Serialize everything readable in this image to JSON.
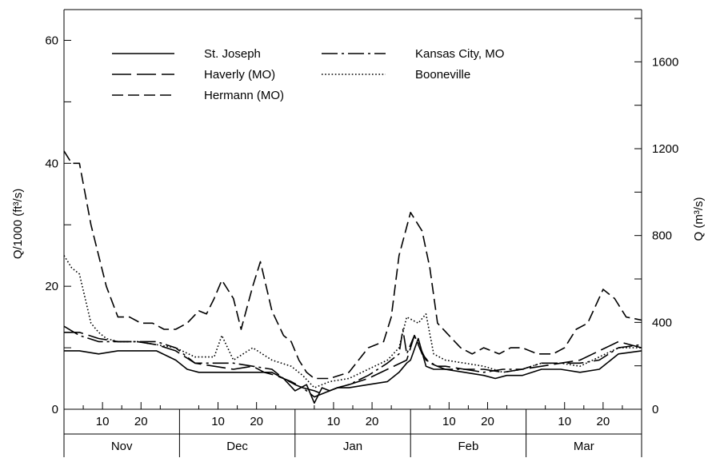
{
  "chart_data": {
    "type": "line",
    "title": "",
    "ylabel": "Q/1000 (ft³/s)",
    "ylabel_right": "Q (m³/s)",
    "ylim": [
      0,
      65
    ],
    "ylim_right_m3s": [
      0,
      1840
    ],
    "yticks_labeled": [
      0,
      20,
      40,
      60
    ],
    "yticks_right_labeled": [
      0,
      400,
      800,
      1200,
      1600
    ],
    "x_unit": "day index from Nov 1",
    "xlim": [
      1,
      151
    ],
    "grid": false,
    "legend_position": "top-left",
    "months": [
      {
        "label": "Nov",
        "start": 1,
        "end": 31
      },
      {
        "label": "Dec",
        "start": 31,
        "end": 61
      },
      {
        "label": "Jan",
        "start": 61,
        "end": 91
      },
      {
        "label": "Feb",
        "start": 91,
        "end": 121
      },
      {
        "label": "Mar",
        "start": 121,
        "end": 151
      }
    ],
    "day_tick_labels": [
      "10",
      "20"
    ],
    "series": [
      {
        "name": "St. Joseph",
        "dash": "solid",
        "x": [
          1,
          5,
          10,
          15,
          20,
          25,
          30,
          33,
          36,
          40,
          45,
          50,
          55,
          58,
          61,
          64,
          66,
          68,
          70,
          72,
          75,
          80,
          85,
          88,
          90,
          91,
          93,
          95,
          97,
          100,
          105,
          110,
          113,
          116,
          120,
          125,
          130,
          135,
          140,
          145,
          151
        ],
        "y": [
          9.5,
          9.5,
          9,
          9.5,
          9.5,
          9.5,
          8,
          6.5,
          6,
          6,
          6,
          6,
          6,
          5,
          3,
          4,
          1,
          3.5,
          3,
          3.5,
          3.5,
          4,
          4.5,
          6,
          7.5,
          8,
          11.5,
          7,
          6.5,
          6.5,
          6,
          5.5,
          5,
          5.5,
          5.5,
          6.5,
          6.5,
          6,
          6.5,
          9,
          9.5
        ]
      },
      {
        "name": "Haverly (MO)",
        "dash": "longdash",
        "x": [
          1,
          5,
          10,
          15,
          20,
          25,
          30,
          35,
          40,
          45,
          50,
          53,
          56,
          60,
          63,
          66,
          68,
          70,
          72,
          75,
          80,
          85,
          90,
          92,
          94,
          96,
          98,
          100,
          105,
          110,
          115,
          120,
          125,
          130,
          135,
          140,
          145,
          151
        ],
        "y": [
          12.5,
          12.5,
          11.5,
          11,
          11,
          10.5,
          9.5,
          7.5,
          7,
          6.5,
          7,
          6,
          5.5,
          4.5,
          3.5,
          3,
          2.5,
          3,
          3.5,
          4,
          5,
          6.5,
          8,
          12,
          9,
          7.5,
          7,
          7,
          6.5,
          6.5,
          6,
          6.5,
          7,
          7.5,
          8,
          9.5,
          11,
          10
        ]
      },
      {
        "name": "Hermann (MO)",
        "dash": "dashed",
        "x": [
          1,
          3,
          5,
          8,
          10,
          12,
          15,
          18,
          21,
          24,
          27,
          30,
          33,
          36,
          38,
          40,
          42,
          45,
          47,
          50,
          52,
          55,
          58,
          60,
          62,
          64,
          66,
          70,
          75,
          80,
          84,
          86,
          88,
          91,
          94,
          96,
          98,
          101,
          104,
          107,
          110,
          114,
          117,
          120,
          124,
          128,
          131,
          134,
          137,
          141,
          144,
          147,
          151
        ],
        "y": [
          42,
          40,
          40,
          30,
          25,
          20,
          15,
          15,
          14,
          14,
          13,
          13,
          14,
          16,
          15.5,
          18,
          21,
          18,
          13,
          20,
          24,
          16,
          12,
          11,
          8,
          6,
          5,
          5,
          6,
          10,
          11,
          15,
          25,
          32,
          29,
          23,
          14,
          12,
          10,
          9,
          10,
          9,
          10,
          10,
          9,
          9,
          10,
          13,
          14,
          19.5,
          18,
          15,
          14.5
        ]
      },
      {
        "name": "Kansas City, MO",
        "dash": "dashdot",
        "x": [
          1,
          5,
          10,
          15,
          20,
          25,
          30,
          35,
          40,
          45,
          50,
          55,
          58,
          61,
          63,
          66,
          68,
          70,
          72,
          75,
          80,
          85,
          88,
          89,
          90,
          92,
          95,
          98,
          100,
          105,
          110,
          115,
          120,
          125,
          130,
          135,
          140,
          145,
          151
        ],
        "y": [
          13.5,
          12,
          11,
          11,
          11,
          11,
          10,
          7.5,
          7.5,
          7.5,
          7,
          6.5,
          5,
          4,
          3.5,
          2,
          2.5,
          3,
          3.5,
          4,
          5.5,
          7.5,
          9,
          13,
          9,
          12,
          8,
          7,
          6.5,
          6.5,
          6,
          6.5,
          6.5,
          7.5,
          7.5,
          7.5,
          8,
          10,
          10.5
        ]
      },
      {
        "name": "Booneville",
        "dash": "dotted",
        "x": [
          1,
          3,
          5,
          8,
          10,
          12,
          15,
          20,
          25,
          30,
          35,
          40,
          42,
          45,
          50,
          55,
          60,
          63,
          66,
          70,
          75,
          80,
          85,
          88,
          90,
          93,
          95,
          97,
          100,
          105,
          110,
          115,
          120,
          125,
          130,
          135,
          140,
          145,
          151
        ],
        "y": [
          25,
          23,
          22,
          14,
          12.5,
          11.5,
          11,
          11,
          10.5,
          10,
          8.5,
          8.5,
          12,
          8,
          10,
          8,
          7,
          5.5,
          3.5,
          4.5,
          5,
          6.5,
          8,
          10,
          15,
          14,
          15.5,
          9,
          8,
          7.5,
          7,
          6,
          6.5,
          7.5,
          7.5,
          7,
          8.5,
          10,
          10
        ]
      }
    ]
  }
}
